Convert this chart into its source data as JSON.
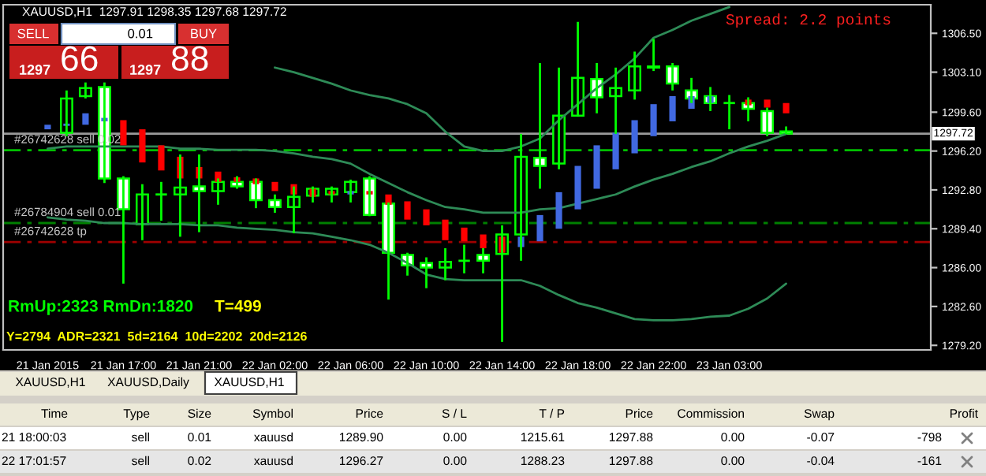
{
  "chart_data": {
    "type": "candlestick",
    "title": "XAUUSD,H1  1297.91 1298.35 1297.68 1297.72",
    "categories": [
      "21 Jan 2015",
      null,
      null,
      null,
      "21 Jan 17:00",
      null,
      null,
      null,
      "21 Jan 21:00",
      null,
      null,
      null,
      "22 Jan 02:00",
      null,
      null,
      null,
      "22 Jan 06:00",
      null,
      null,
      null,
      "22 Jan 10:00",
      null,
      null,
      null,
      "22 Jan 14:00",
      null,
      null,
      null,
      "22 Jan 18:00",
      null,
      null,
      null,
      "22 Jan 22:00",
      null,
      null,
      null,
      "23 Jan 03:00",
      null,
      null,
      null
    ],
    "series": [
      {
        "type": "line",
        "color": "#2e8b57",
        "values": [
          null,
          null,
          null,
          null,
          null,
          null,
          null,
          null,
          null,
          null,
          null,
          null,
          1303.5,
          1303.1,
          1302.6,
          1302.1,
          1301.5,
          1301.1,
          1300.8,
          1300.3,
          1299.5,
          1297.9,
          1296.6,
          1296.2,
          1296.2,
          1296.6,
          1297.3,
          1298.9,
          1300.3,
          1301.7,
          1302.9,
          1304.3,
          1306.1,
          1306.8,
          1307.6,
          1308.2,
          1308.8,
          null,
          null,
          null
        ]
      },
      {
        "type": "line",
        "color": "#2e8b57",
        "values": [
          1296.4,
          1296.6,
          1296.6,
          1296.6,
          1296.6,
          1296.6,
          1296.6,
          1296.4,
          1296.4,
          1296.3,
          1296.3,
          1296.3,
          1296.2,
          1296.0,
          1295.7,
          1295.5,
          1295.1,
          1294.2,
          1293.4,
          1292.6,
          1291.9,
          1291.3,
          1291.1,
          1290.8,
          1290.8,
          1290.8,
          1291.1,
          1291.2,
          1291.6,
          1292.0,
          1292.4,
          1293.1,
          1293.7,
          1294.2,
          1294.8,
          1295.3,
          1296.0,
          1296.6,
          1297.1,
          1297.7
        ]
      },
      {
        "type": "line",
        "color": "#2e8b57",
        "values": [
          1290.4,
          1290.2,
          1290.1,
          1289.9,
          1289.9,
          1289.8,
          1289.8,
          1289.8,
          1289.7,
          1289.7,
          1289.5,
          1289.4,
          1289.3,
          1289.1,
          1289.0,
          1288.7,
          1288.4,
          1288.0,
          1287.3,
          1286.4,
          1285.4,
          1285.0,
          1284.9,
          1284.9,
          1284.9,
          1284.9,
          1284.4,
          1283.6,
          1282.9,
          1282.5,
          1282.0,
          1281.5,
          1281.4,
          1281.4,
          1281.5,
          1281.7,
          1281.8,
          1282.4,
          1283.3,
          1284.6
        ]
      },
      {
        "color": "#00ff00",
        "colors": [
          null,
          "#000000",
          "#000000",
          "#ffffff",
          "#ffffff",
          "#000000",
          "#00ff00",
          "#000000",
          "#ffffff",
          "#000000",
          "#ffffff",
          "#ffffff",
          "#ffffff",
          "#000000",
          "#000000",
          "#000000",
          "#000000",
          "#ffffff",
          "#ffffff",
          "#ffffff",
          "#ffffff",
          "#000000",
          "#00ff00",
          "#ffffff",
          "#000000",
          "#000000",
          "#ffffff",
          "#000000",
          "#000000",
          "#ffffff",
          "#000000",
          "#000000",
          "#ffffff",
          "#ffffff",
          "#ffffff",
          "#ffffff",
          "#00ff00",
          "#ffffff",
          "#ffffff",
          "#ffffff"
        ],
        "ohlc": [
          null,
          [
            1297.8,
            1301.5,
            1297.5,
            1300.8
          ],
          [
            1301.0,
            1302.2,
            1300.8,
            1301.7
          ],
          [
            1301.8,
            1302.2,
            1293.4,
            1293.8
          ],
          [
            1293.8,
            1294.0,
            1284.6,
            1291.1
          ],
          [
            1289.8,
            1293.3,
            1288.4,
            1292.4
          ],
          [
            1292.4,
            1293.5,
            1290.1,
            1292.4
          ],
          [
            1292.4,
            1295.9,
            1288.7,
            1293.0
          ],
          [
            1293.1,
            1295.9,
            1289.1,
            1292.7
          ],
          [
            1292.7,
            1293.8,
            1291.5,
            1293.5
          ],
          [
            1293.5,
            1294.0,
            1292.9,
            1293.1
          ],
          [
            1293.5,
            1293.8,
            1291.2,
            1291.9
          ],
          [
            1291.9,
            1292.4,
            1290.8,
            1291.3
          ],
          [
            1291.3,
            1293.1,
            1289.0,
            1292.2
          ],
          [
            1292.3,
            1293.1,
            1291.7,
            1292.9
          ],
          [
            1292.4,
            1293.1,
            1291.7,
            1292.9
          ],
          [
            1292.6,
            1293.7,
            1291.7,
            1293.5
          ],
          [
            1293.8,
            1294.0,
            1290.5,
            1290.6
          ],
          [
            1291.6,
            1291.7,
            1283.2,
            1287.3
          ],
          [
            1287.1,
            1287.3,
            1285.3,
            1286.2
          ],
          [
            1286.4,
            1286.9,
            1284.2,
            1286.0
          ],
          [
            1286.0,
            1287.7,
            1284.9,
            1286.5
          ],
          [
            1286.6,
            1288.0,
            1285.5,
            1286.6
          ],
          [
            1287.1,
            1287.7,
            1285.5,
            1286.6
          ],
          [
            1287.2,
            1289.7,
            1279.5,
            1288.9
          ],
          [
            1288.9,
            1297.7,
            1286.6,
            1295.7
          ],
          [
            1295.6,
            1303.9,
            1292.9,
            1294.9
          ],
          [
            1295.1,
            1303.5,
            1294.6,
            1299.3
          ],
          [
            1299.3,
            1307.5,
            1299.2,
            1302.6
          ],
          [
            1302.5,
            1303.9,
            1299.5,
            1300.9
          ],
          [
            1301.0,
            1303.5,
            1297.7,
            1301.7
          ],
          [
            1301.5,
            1304.9,
            1300.7,
            1303.6
          ],
          [
            1303.6,
            1306.0,
            1303.2,
            1303.5
          ],
          [
            1303.6,
            1303.9,
            1301.5,
            1302.1
          ],
          [
            1301.5,
            1302.6,
            1300.4,
            1300.8
          ],
          [
            1301.0,
            1301.8,
            1299.7,
            1300.4
          ],
          [
            1300.4,
            1301.1,
            1298.1,
            1300.4
          ],
          [
            1300.4,
            1300.9,
            1298.8,
            1299.9
          ],
          [
            1299.7,
            1300.0,
            1297.5,
            1297.8
          ],
          [
            1297.91,
            1298.35,
            1297.68,
            1297.72
          ]
        ]
      },
      {
        "type": "bar",
        "color": "#ff0000",
        "values": [
          null,
          null,
          null,
          null,
          2.2,
          2.9,
          2.2,
          1.9,
          1.0,
          0.9,
          0.4,
          0.5,
          0.8,
          0.9,
          0.7,
          0.3,
          null,
          0.3,
          0.9,
          1.6,
          1.4,
          1.8,
          1.2,
          1.2,
          1.4,
          null,
          null,
          null,
          null,
          null,
          null,
          null,
          null,
          null,
          null,
          null,
          null,
          0.5,
          0.7,
          0.9
        ],
        "base": [
          null,
          null,
          null,
          null,
          1296.7,
          1295.2,
          1294.5,
          1293.8,
          1293.8,
          1293.5,
          1293.5,
          1293.3,
          1292.7,
          1292.4,
          1292.2,
          1292.4,
          null,
          1292.4,
          1291.5,
          1290.2,
          1289.7,
          1288.4,
          1288.3,
          1287.7,
          1287.3,
          null,
          null,
          null,
          null,
          null,
          null,
          null,
          null,
          null,
          null,
          null,
          null,
          1300.2,
          1300.0,
          1299.5
        ]
      },
      {
        "type": "bar",
        "color": "#4169e1",
        "values": [
          0.4,
          0.2,
          1.0,
          0.3,
          null,
          null,
          null,
          null,
          null,
          null,
          null,
          null,
          null,
          null,
          null,
          null,
          0.3,
          null,
          null,
          null,
          null,
          null,
          null,
          null,
          null,
          0.9,
          2.3,
          3.2,
          3.8,
          3.8,
          3.2,
          2.9,
          2.8,
          2.2,
          1.1,
          0.6,
          null,
          null,
          null,
          null
        ],
        "base": [
          1298.1,
          1298.4,
          1298.5,
          1298.8,
          null,
          null,
          null,
          null,
          null,
          null,
          null,
          null,
          null,
          null,
          null,
          null,
          1292.4,
          null,
          null,
          null,
          null,
          null,
          null,
          null,
          null,
          1287.8,
          1288.3,
          1289.4,
          1291.1,
          1292.9,
          1294.6,
          1296.0,
          1297.5,
          1298.8,
          1299.9,
          1300.4,
          null,
          null,
          null,
          null
        ]
      }
    ],
    "ylim": [
      1278.8,
      1309.0
    ],
    "yticks": [
      {
        "value": 1279.2,
        "label": "1279.20"
      },
      {
        "value": 1282.6,
        "label": "1282.60"
      },
      {
        "value": 1286.0,
        "label": "1286.00"
      },
      {
        "value": 1289.4,
        "label": "1289.40"
      },
      {
        "value": 1292.8,
        "label": "1292.80"
      },
      {
        "value": 1296.2,
        "label": "1296.20"
      },
      {
        "value": 1299.6,
        "label": "1299.60"
      },
      {
        "value": 1303.1,
        "label": "1303.10"
      },
      {
        "value": 1306.5,
        "label": "1306.50"
      }
    ],
    "ref_lines": [
      {
        "axis": "y",
        "value": 1297.72,
        "label": "1297.72",
        "color": "#9a9a9a",
        "line_style": "solid"
      },
      {
        "axis": "y",
        "value": 1296.27,
        "label": "#26742628 sell 0.02",
        "color": "#00c000",
        "line_style": "dashed"
      },
      {
        "axis": "y",
        "value": 1289.9,
        "label": "#26784904 sell 0.01",
        "color": "#008000",
        "line_style": "dashed"
      },
      {
        "axis": "y",
        "value": 1288.23,
        "label": "#26742628 tp",
        "color": "#a00000",
        "line_style": "dashed"
      }
    ],
    "annotations": [
      "Spread: 2.2 points",
      "RmUp:2323 RmDn:1820",
      "T=499",
      "Y=2794  ADR=2321  5d=2164  10d=2202  20d=2126",
      "SELL",
      "0.01",
      "BUY",
      "1297",
      "66",
      "1297",
      "88",
      "XAUUSD,H1",
      "XAUUSD,Daily",
      "XAUUSD,H1",
      "Time",
      "Type",
      "Size",
      "Symbol",
      "Price",
      "S / L",
      "T / P",
      "Price",
      "Commission",
      "Swap",
      "Profit",
      "21 18:00:03",
      "sell",
      "0.01",
      "xauusd",
      "1289.90",
      "0.00",
      "1215.61",
      "1297.88",
      "0.00",
      "-0.07",
      "-798",
      "22 17:01:57",
      "sell",
      "0.02",
      "xauusd",
      "1296.27",
      "0.00",
      "1288.23",
      "1297.88",
      "0.00",
      "-0.04",
      "-161"
    ],
    "grid": false,
    "legend": false
  }
}
